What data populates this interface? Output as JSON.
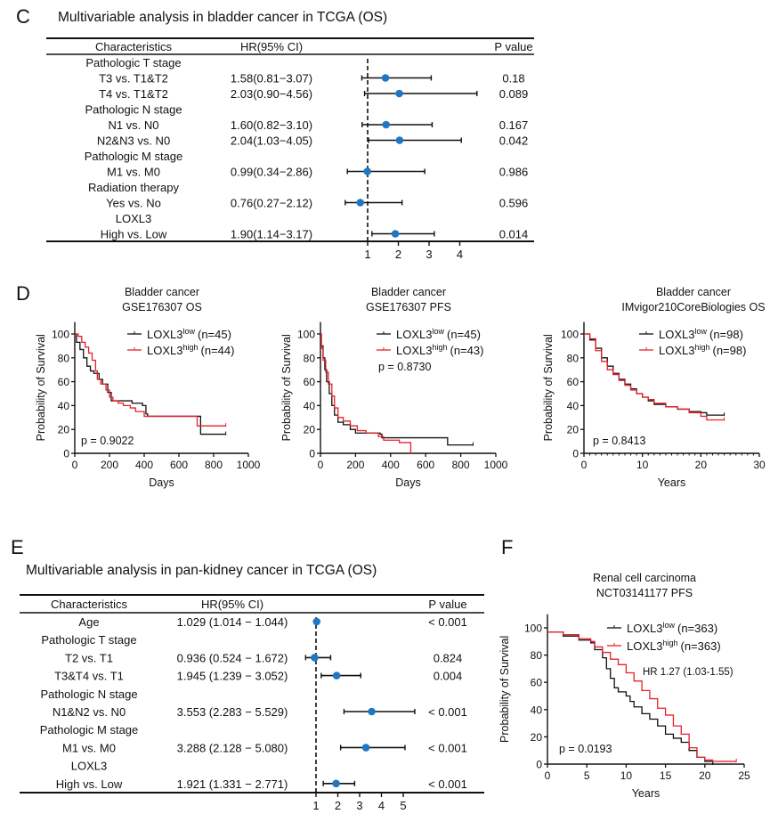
{
  "colors": {
    "dot": "#1f77c4",
    "highlight": "#e8202a",
    "low_curve": "#111111",
    "high_curve": "#e8202a"
  },
  "panel_c": {
    "letter": "C",
    "title": "Multivariable analysis in bladder cancer in TCGA (OS)",
    "headers": {
      "characteristics": "Characteristics",
      "hr": "HR(95% CI)",
      "p": "P value"
    },
    "rows": [
      {
        "label": "Pathologic T stage"
      },
      {
        "label": "T3 vs. T1&T2",
        "hr_text": "1.58(0.81−3.07)",
        "hr": 1.58,
        "lo": 0.81,
        "hi": 3.07,
        "p": "0.18"
      },
      {
        "label": "T4 vs. T1&T2",
        "hr_text": "2.03(0.90−4.56)",
        "hr": 2.03,
        "lo": 0.9,
        "hi": 4.56,
        "p": "0.089"
      },
      {
        "label": "Pathologic N stage"
      },
      {
        "label": "N1 vs. N0",
        "hr_text": "1.60(0.82−3.10)",
        "hr": 1.6,
        "lo": 0.82,
        "hi": 3.1,
        "p": "0.167"
      },
      {
        "label": "N2&N3 vs. N0",
        "hr_text": "2.04(1.03−4.05)",
        "hr": 2.04,
        "lo": 1.03,
        "hi": 4.05,
        "p": "0.042"
      },
      {
        "label": "Pathologic M stage"
      },
      {
        "label": "M1 vs. M0",
        "hr_text": "0.99(0.34−2.86)",
        "hr": 0.99,
        "lo": 0.34,
        "hi": 2.86,
        "p": "0.986"
      },
      {
        "label": "Radiation therapy"
      },
      {
        "label": "Yes vs. No",
        "hr_text": "0.76(0.27−2.12)",
        "hr": 0.76,
        "lo": 0.27,
        "hi": 2.12,
        "p": "0.596"
      },
      {
        "label": "LOXL3",
        "highlight": true
      },
      {
        "label": "High vs. Low",
        "hr_text": "1.90(1.14−3.17)",
        "hr": 1.9,
        "lo": 1.14,
        "hi": 3.17,
        "p": "0.014",
        "highlight": true
      }
    ],
    "axis_ticks": [
      "1",
      "2",
      "3",
      "4"
    ]
  },
  "panel_d": {
    "letter": "D"
  },
  "panel_e": {
    "letter": "E",
    "title": "Multivariable analysis in pan-kidney cancer in TCGA (OS)",
    "headers": {
      "characteristics": "Characteristics",
      "hr": "HR(95% CI)",
      "p": "P value"
    },
    "rows": [
      {
        "label": "Age",
        "hr_text": "1.029 (1.014 − 1.044)",
        "hr": 1.029,
        "lo": 1.014,
        "hi": 1.044,
        "p": "< 0.001"
      },
      {
        "label": "Pathologic T stage"
      },
      {
        "label": "T2 vs. T1",
        "hr_text": "0.936 (0.524 − 1.672)",
        "hr": 0.936,
        "lo": 0.524,
        "hi": 1.672,
        "p": "0.824"
      },
      {
        "label": "T3&T4 vs. T1",
        "hr_text": "1.945 (1.239 − 3.052)",
        "hr": 1.945,
        "lo": 1.239,
        "hi": 3.052,
        "p": "0.004"
      },
      {
        "label": "Pathologic N stage"
      },
      {
        "label": "N1&N2 vs. N0",
        "hr_text": "3.553 (2.283 − 5.529)",
        "hr": 3.553,
        "lo": 2.283,
        "hi": 5.529,
        "p": "< 0.001"
      },
      {
        "label": "Pathologic M stage"
      },
      {
        "label": "M1 vs. M0",
        "hr_text": "3.288 (2.128 − 5.080)",
        "hr": 3.288,
        "lo": 2.128,
        "hi": 5.08,
        "p": "< 0.001"
      },
      {
        "label": "LOXL3"
      },
      {
        "label": "High vs. Low",
        "hr_text": "1.921 (1.331 − 2.771)",
        "hr": 1.921,
        "lo": 1.331,
        "hi": 2.771,
        "p": "< 0.001"
      }
    ],
    "axis_ticks": [
      "1",
      "2",
      "3",
      "4",
      "5"
    ]
  },
  "panel_f": {
    "letter": "F"
  },
  "chart_data": [
    {
      "type": "forest",
      "panel": "C",
      "xlim": [
        0.27,
        4.56
      ],
      "reference_line": 1
    },
    {
      "type": "forest",
      "panel": "E",
      "xlim": [
        0.5,
        5.5
      ],
      "reference_line": 1
    },
    {
      "type": "line",
      "panel": "D1",
      "title": [
        "Bladder cancer",
        "GSE176307 OS"
      ],
      "xlabel": "Days",
      "ylabel": "Probability of Survival",
      "xlim": [
        0,
        1000
      ],
      "ylim": [
        0,
        110
      ],
      "xticks": [
        "0",
        "200",
        "400",
        "600",
        "800",
        "1000"
      ],
      "yticks": [
        "0",
        "20",
        "40",
        "60",
        "80",
        "100"
      ],
      "annotation": "p = 0.9022",
      "series": [
        {
          "name": "LOXL3",
          "sup": "low",
          "n": "(n=45)",
          "color": "#111111",
          "points": [
            [
              0,
              100
            ],
            [
              10,
              93
            ],
            [
              30,
              87
            ],
            [
              50,
              80
            ],
            [
              70,
              73
            ],
            [
              90,
              69
            ],
            [
              110,
              67
            ],
            [
              140,
              62
            ],
            [
              160,
              58
            ],
            [
              190,
              51
            ],
            [
              210,
              44
            ],
            [
              300,
              44
            ],
            [
              330,
              42
            ],
            [
              390,
              40
            ],
            [
              410,
              33
            ],
            [
              420,
              31
            ],
            [
              720,
              31
            ],
            [
              725,
              16
            ],
            [
              870,
              16
            ]
          ]
        },
        {
          "name": "LOXL3",
          "sup": "high",
          "n": "(n=44)",
          "color": "#e8202a",
          "points": [
            [
              0,
              100
            ],
            [
              20,
              98
            ],
            [
              40,
              93
            ],
            [
              60,
              89
            ],
            [
              80,
              84
            ],
            [
              100,
              78
            ],
            [
              120,
              69
            ],
            [
              130,
              62
            ],
            [
              150,
              58
            ],
            [
              180,
              53
            ],
            [
              200,
              47
            ],
            [
              220,
              44
            ],
            [
              250,
              42
            ],
            [
              280,
              40
            ],
            [
              320,
              38
            ],
            [
              350,
              35
            ],
            [
              400,
              31
            ],
            [
              700,
              31
            ],
            [
              705,
              23
            ],
            [
              870,
              23
            ]
          ]
        }
      ]
    },
    {
      "type": "line",
      "panel": "D2",
      "title": [
        "Bladder cancer",
        "GSE176307 PFS"
      ],
      "xlabel": "Days",
      "ylabel": "Probability of Survival",
      "xlim": [
        0,
        1000
      ],
      "ylim": [
        0,
        110
      ],
      "xticks": [
        "0",
        "200",
        "400",
        "600",
        "800",
        "1000"
      ],
      "yticks": [
        "0",
        "20",
        "40",
        "60",
        "80",
        "100"
      ],
      "annotation": "p = 0.8730",
      "series": [
        {
          "name": "LOXL3",
          "sup": "low",
          "n": "(n=45)",
          "color": "#111111",
          "points": [
            [
              0,
              100
            ],
            [
              5,
              90
            ],
            [
              15,
              80
            ],
            [
              25,
              70
            ],
            [
              35,
              60
            ],
            [
              50,
              50
            ],
            [
              65,
              40
            ],
            [
              80,
              32
            ],
            [
              100,
              26
            ],
            [
              130,
              24
            ],
            [
              170,
              20
            ],
            [
              200,
              17
            ],
            [
              340,
              16
            ],
            [
              350,
              13
            ],
            [
              720,
              13
            ],
            [
              725,
              7
            ],
            [
              870,
              7
            ]
          ]
        },
        {
          "name": "LOXL3",
          "sup": "high",
          "n": "(n=43)",
          "color": "#e8202a",
          "points": [
            [
              0,
              100
            ],
            [
              5,
              88
            ],
            [
              15,
              78
            ],
            [
              30,
              68
            ],
            [
              45,
              58
            ],
            [
              65,
              48
            ],
            [
              80,
              38
            ],
            [
              100,
              30
            ],
            [
              130,
              27
            ],
            [
              170,
              23
            ],
            [
              210,
              19
            ],
            [
              260,
              17
            ],
            [
              330,
              14
            ],
            [
              360,
              11
            ],
            [
              420,
              11
            ],
            [
              450,
              9
            ],
            [
              510,
              9
            ],
            [
              515,
              0
            ]
          ]
        }
      ]
    },
    {
      "type": "line",
      "panel": "D3",
      "title": [
        "Bladder cancer",
        "IMvigor210CoreBiologies OS"
      ],
      "xlabel": "Years",
      "ylabel": "Probability of Survival",
      "xlim": [
        0,
        30
      ],
      "ylim": [
        0,
        110
      ],
      "xticks": [
        "0",
        "10",
        "20",
        "30"
      ],
      "yticks": [
        "0",
        "20",
        "40",
        "60",
        "80",
        "100"
      ],
      "annotation": "p = 0.8413",
      "series": [
        {
          "name": "LOXL3",
          "sup": "low",
          "n": "(n=98)",
          "color": "#111111",
          "points": [
            [
              0,
              100
            ],
            [
              1,
              95
            ],
            [
              2,
              88
            ],
            [
              3,
              80
            ],
            [
              4,
              73
            ],
            [
              5,
              67
            ],
            [
              6,
              62
            ],
            [
              7,
              58
            ],
            [
              8,
              54
            ],
            [
              9,
              50
            ],
            [
              10,
              47
            ],
            [
              11,
              44
            ],
            [
              12,
              41
            ],
            [
              14,
              39
            ],
            [
              16,
              37
            ],
            [
              18,
              35
            ],
            [
              20,
              34
            ],
            [
              21,
              32
            ],
            [
              24,
              32
            ]
          ]
        },
        {
          "name": "LOXL3",
          "sup": "high",
          "n": "(n=98)",
          "color": "#e8202a",
          "points": [
            [
              0,
              100
            ],
            [
              1,
              96
            ],
            [
              2,
              86
            ],
            [
              3,
              77
            ],
            [
              4,
              70
            ],
            [
              5,
              66
            ],
            [
              6,
              61
            ],
            [
              7,
              57
            ],
            [
              8,
              53
            ],
            [
              9,
              50
            ],
            [
              10,
              47
            ],
            [
              11,
              45
            ],
            [
              12,
              42
            ],
            [
              14,
              39
            ],
            [
              16,
              37
            ],
            [
              18,
              34
            ],
            [
              20,
              31
            ],
            [
              21,
              28
            ],
            [
              24,
              28
            ]
          ]
        }
      ]
    },
    {
      "type": "line",
      "panel": "F",
      "title": [
        "Renal cell carcinoma",
        "NCT03141177 PFS"
      ],
      "xlabel": "Years",
      "ylabel": "Probability of Survival",
      "xlim": [
        0,
        25
      ],
      "ylim": [
        0,
        110
      ],
      "xticks": [
        "0",
        "5",
        "10",
        "15",
        "20",
        "25"
      ],
      "yticks": [
        "0",
        "20",
        "40",
        "60",
        "80",
        "100"
      ],
      "annotation": "p = 0.0193",
      "annotation2": "HR 1.27 (1.03-1.55)",
      "series": [
        {
          "name": "LOXL3",
          "sup": "low",
          "n": "(n=363)",
          "color": "#111111",
          "points": [
            [
              0,
              97
            ],
            [
              2,
              94
            ],
            [
              4,
              91
            ],
            [
              5.5,
              89
            ],
            [
              6,
              84
            ],
            [
              7,
              78
            ],
            [
              7.5,
              70
            ],
            [
              8,
              63
            ],
            [
              8.5,
              56
            ],
            [
              9,
              53
            ],
            [
              10,
              50
            ],
            [
              10.5,
              46
            ],
            [
              11,
              42
            ],
            [
              12,
              37
            ],
            [
              13,
              33
            ],
            [
              14,
              28
            ],
            [
              15,
              22
            ],
            [
              16,
              19
            ],
            [
              17,
              16
            ],
            [
              18,
              10
            ],
            [
              19,
              5
            ],
            [
              20,
              2
            ],
            [
              21,
              0
            ]
          ]
        },
        {
          "name": "LOXL3",
          "sup": "high",
          "n": "(n=363)",
          "color": "#e8202a",
          "points": [
            [
              0,
              97
            ],
            [
              2,
              95
            ],
            [
              4,
              92
            ],
            [
              5.5,
              90
            ],
            [
              6,
              86
            ],
            [
              7,
              82
            ],
            [
              8,
              77
            ],
            [
              9,
              73
            ],
            [
              10,
              67
            ],
            [
              11,
              61
            ],
            [
              12,
              54
            ],
            [
              13,
              48
            ],
            [
              14,
              41
            ],
            [
              15,
              36
            ],
            [
              16,
              28
            ],
            [
              17,
              22
            ],
            [
              18,
              12
            ],
            [
              19,
              5
            ],
            [
              20,
              3
            ],
            [
              21,
              2
            ],
            [
              24,
              2
            ]
          ]
        }
      ]
    }
  ]
}
